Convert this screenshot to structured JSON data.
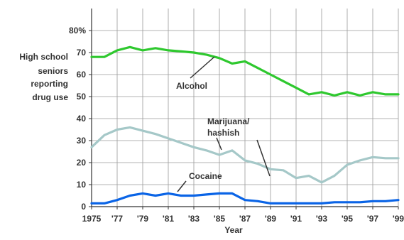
{
  "chart_data": {
    "type": "line",
    "ylabel": [
      "High school",
      "seniors",
      "reporting",
      "drug use"
    ],
    "xlabel": "Year",
    "x_tick_labels": [
      "1975",
      "'77",
      "'79",
      "'81",
      "'83",
      "'85",
      "'87",
      "'89",
      "'91",
      "'93",
      "'95",
      "'97",
      "'99"
    ],
    "x_ticks": [
      1975,
      1977,
      1979,
      1981,
      1983,
      1985,
      1987,
      1989,
      1991,
      1993,
      1995,
      1997,
      1999
    ],
    "y_ticks": [
      0,
      10,
      20,
      30,
      40,
      50,
      60,
      70,
      80
    ],
    "y_tick_labels": [
      "0",
      "10",
      "20",
      "30",
      "40",
      "50",
      "60",
      "70",
      "80%"
    ],
    "xlim": [
      1975,
      1999
    ],
    "ylim": [
      0,
      90
    ],
    "grid": true,
    "series": [
      {
        "name": "Alcohol",
        "color": "#2ec82e",
        "x": [
          1975,
          1976,
          1977,
          1978,
          1979,
          1980,
          1981,
          1982,
          1983,
          1984,
          1985,
          1986,
          1987,
          1988,
          1989,
          1990,
          1991,
          1992,
          1993,
          1994,
          1995,
          1996,
          1997,
          1998,
          1999
        ],
        "values": [
          68,
          68,
          71,
          72.5,
          71,
          72,
          71,
          70.5,
          70,
          69,
          67.5,
          65,
          66,
          63,
          60,
          57,
          54,
          51,
          52,
          50.5,
          52,
          50.5,
          52,
          51,
          51
        ]
      },
      {
        "name": "Marijuana/ hashish",
        "label_lines": [
          "Marijuana/",
          "hashish"
        ],
        "color": "#a5c8c8",
        "x": [
          1975,
          1976,
          1977,
          1978,
          1979,
          1980,
          1981,
          1982,
          1983,
          1984,
          1985,
          1986,
          1987,
          1988,
          1989,
          1990,
          1991,
          1992,
          1993,
          1994,
          1995,
          1996,
          1997,
          1998,
          1999
        ],
        "values": [
          27,
          32.5,
          35,
          36,
          34.5,
          33,
          31,
          29,
          27,
          25.5,
          23.5,
          25.5,
          21,
          19.5,
          17,
          16.5,
          13,
          14,
          11,
          14,
          19,
          21,
          22.5,
          22,
          22
        ]
      },
      {
        "name": "Cocaine",
        "color": "#0a64e6",
        "x": [
          1975,
          1976,
          1977,
          1978,
          1979,
          1980,
          1981,
          1982,
          1983,
          1984,
          1985,
          1986,
          1987,
          1988,
          1989,
          1990,
          1991,
          1992,
          1993,
          1994,
          1995,
          1996,
          1997,
          1998,
          1999
        ],
        "values": [
          1.5,
          1.5,
          3,
          5,
          6,
          5,
          6,
          5,
          5,
          5.5,
          6,
          6,
          3,
          2.5,
          1.5,
          1.5,
          1.5,
          1.5,
          1.5,
          2,
          2,
          2,
          2.5,
          2.5,
          3
        ]
      }
    ]
  }
}
